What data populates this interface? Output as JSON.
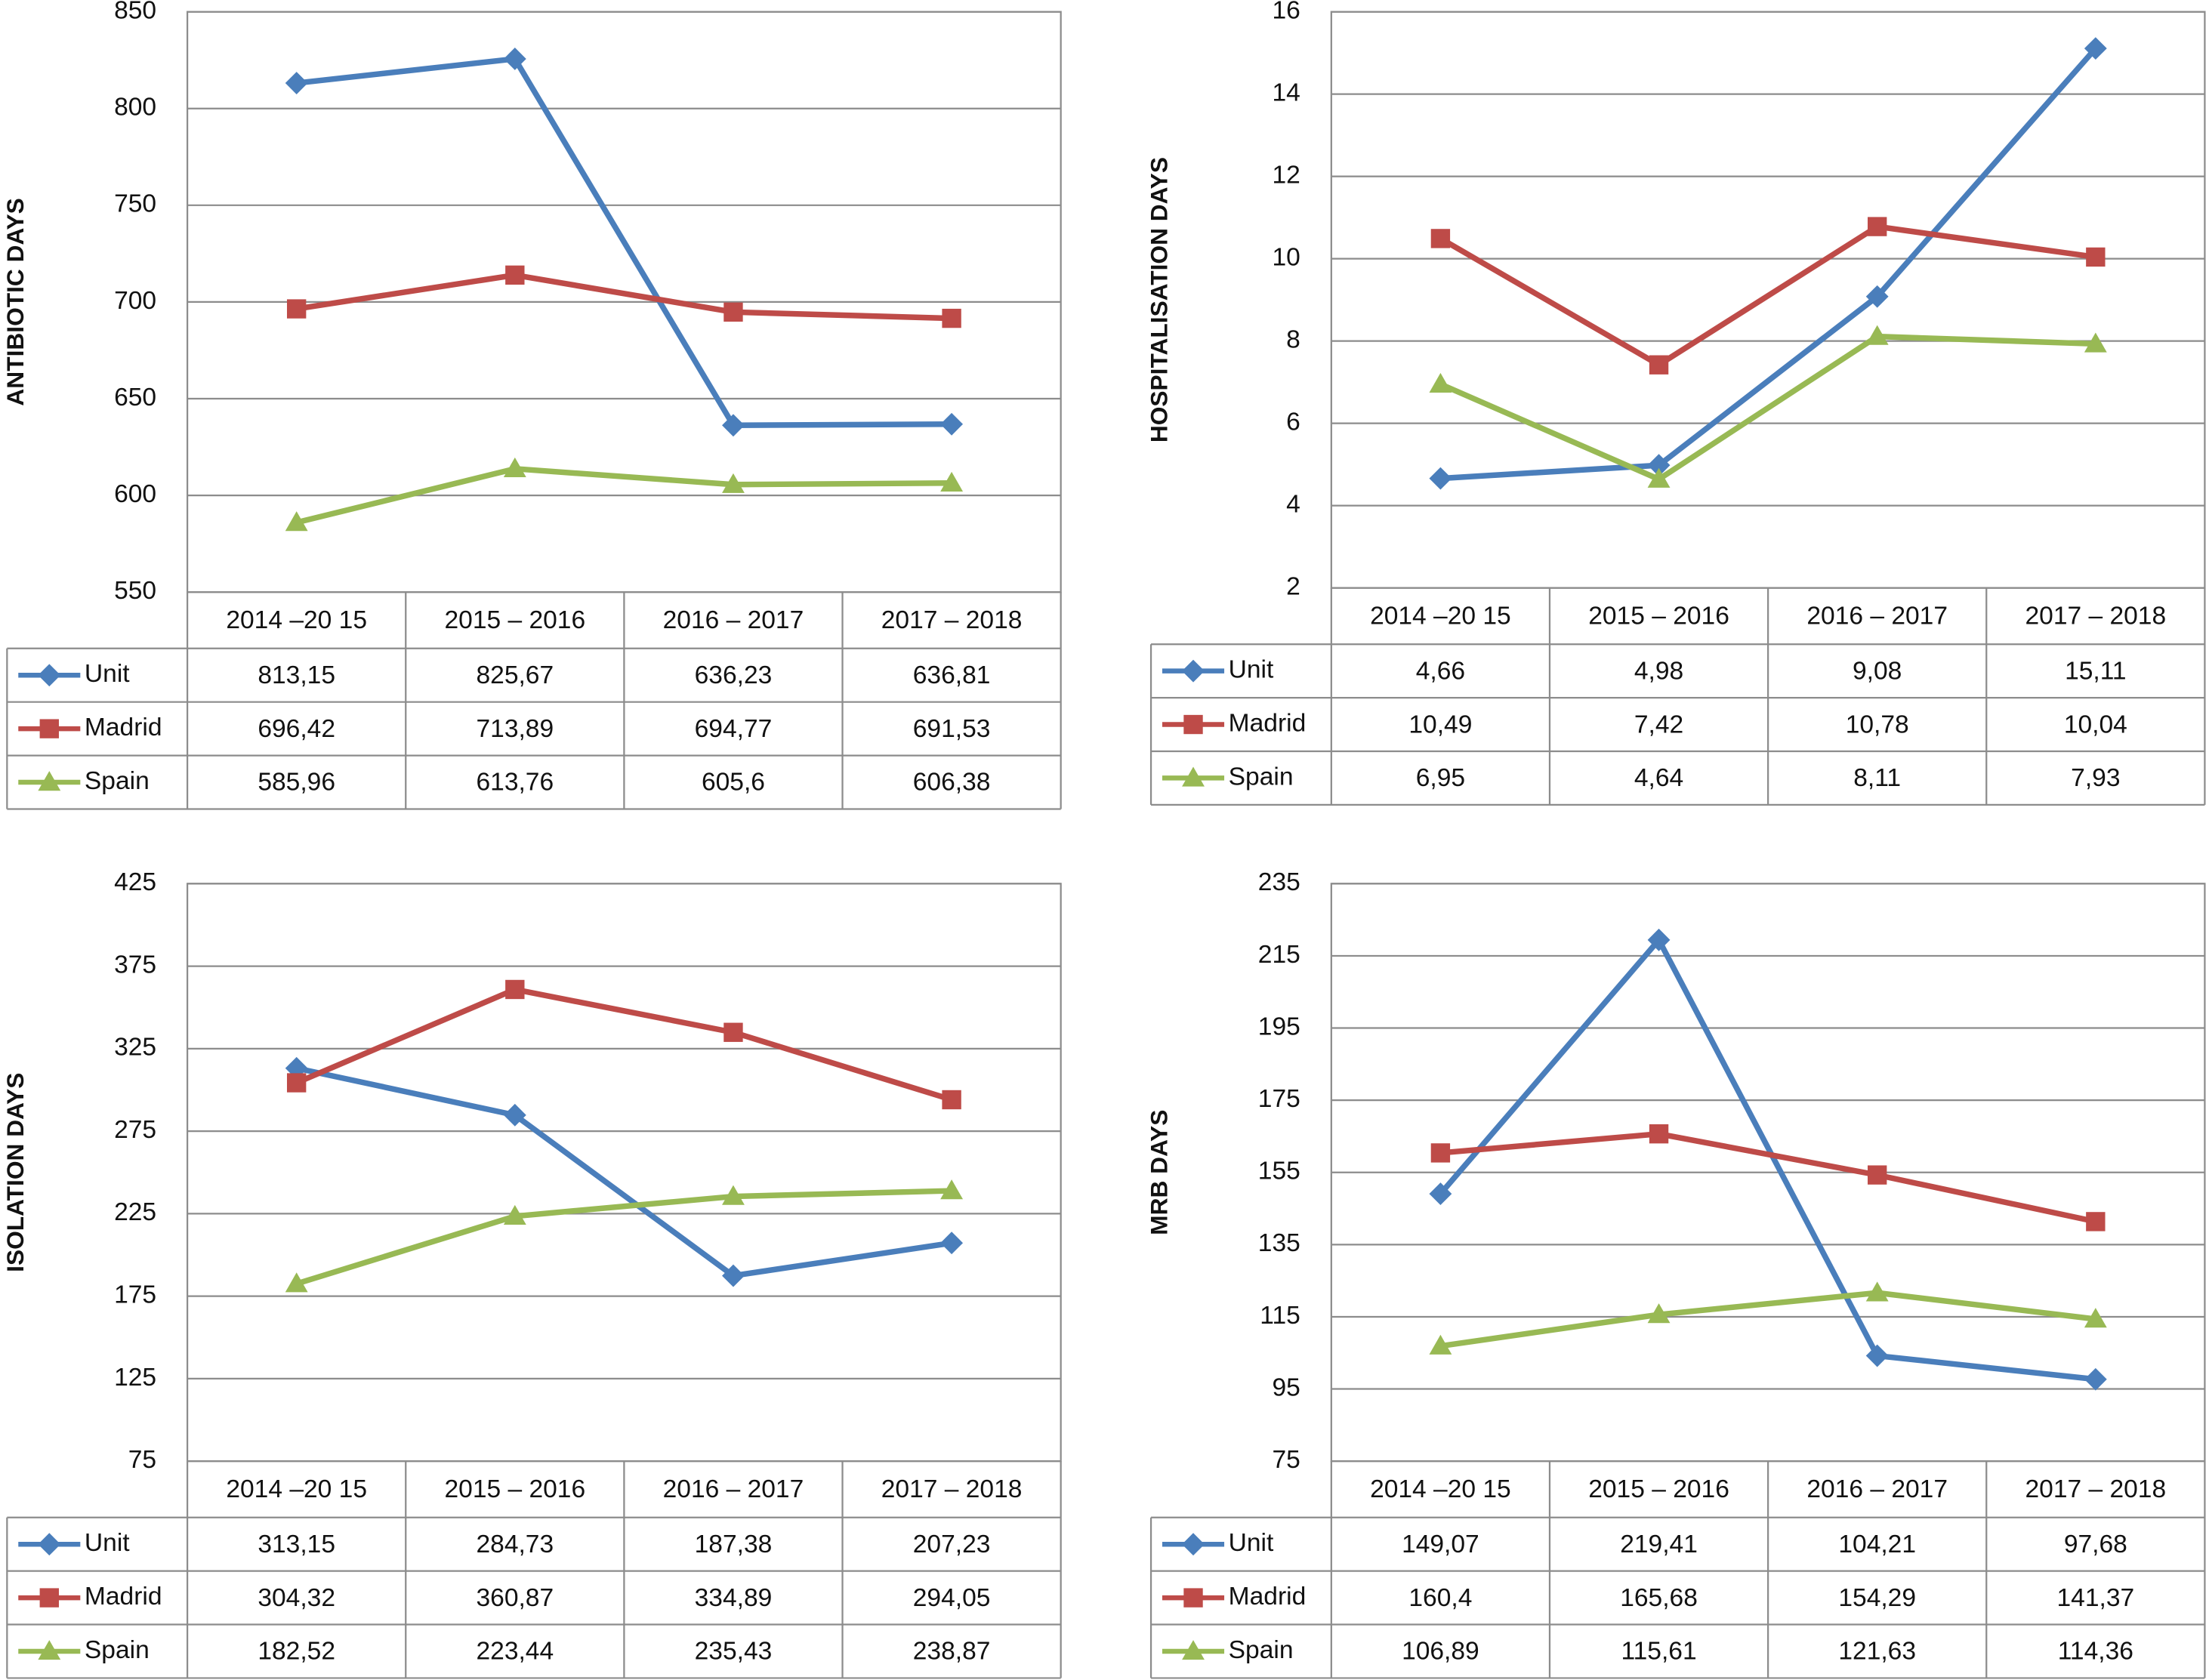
{
  "chart_data": [
    {
      "type": "line",
      "y_label": "ANTIBIOTIC DAYS",
      "categories": [
        "2014 –20 15",
        "2015 – 2016",
        "2016 – 2017",
        "2017 – 2018"
      ],
      "ylim": [
        550,
        850
      ],
      "yticks": [
        550,
        600,
        650,
        700,
        750,
        800,
        850
      ],
      "grid": true,
      "series": [
        {
          "name": "Unit",
          "color": "#4a7ebb",
          "marker": "diamond",
          "values": [
            813.15,
            825.67,
            636.23,
            636.81
          ],
          "value_labels": [
            "813,15",
            "825,67",
            "636,23",
            "636,81"
          ]
        },
        {
          "name": "Madrid",
          "color": "#be4b48",
          "marker": "square",
          "values": [
            696.42,
            713.89,
            694.77,
            691.53
          ],
          "value_labels": [
            "696,42",
            "713,89",
            "694,77",
            "691,53"
          ]
        },
        {
          "name": "Spain",
          "color": "#98b954",
          "marker": "triangle",
          "values": [
            585.96,
            613.76,
            605.6,
            606.38
          ],
          "value_labels": [
            "585,96",
            "613,76",
            "605,6",
            "606,38"
          ]
        }
      ]
    },
    {
      "type": "line",
      "y_label": "HOSPITALISATION DAYS",
      "categories": [
        "2014 –20 15",
        "2015 – 2016",
        "2016 – 2017",
        "2017 – 2018"
      ],
      "ylim": [
        2,
        16
      ],
      "yticks": [
        2,
        4,
        6,
        8,
        10,
        12,
        14,
        16
      ],
      "grid": true,
      "series": [
        {
          "name": "Unit",
          "color": "#4a7ebb",
          "marker": "diamond",
          "values": [
            4.66,
            4.98,
            9.08,
            15.11
          ],
          "value_labels": [
            "4,66",
            "4,98",
            "9,08",
            "15,11"
          ]
        },
        {
          "name": "Madrid",
          "color": "#be4b48",
          "marker": "square",
          "values": [
            10.49,
            7.42,
            10.78,
            10.04
          ],
          "value_labels": [
            "10,49",
            "7,42",
            "10,78",
            "10,04"
          ]
        },
        {
          "name": "Spain",
          "color": "#98b954",
          "marker": "triangle",
          "values": [
            6.95,
            4.64,
            8.11,
            7.93
          ],
          "value_labels": [
            "6,95",
            "4,64",
            "8,11",
            "7,93"
          ]
        }
      ]
    },
    {
      "type": "line",
      "y_label": "ISOLATION DAYS",
      "categories": [
        "2014 –20 15",
        "2015 – 2016",
        "2016 – 2017",
        "2017 – 2018"
      ],
      "ylim": [
        75,
        425
      ],
      "yticks": [
        75,
        125,
        175,
        225,
        275,
        325,
        375,
        425
      ],
      "grid": true,
      "series": [
        {
          "name": "Unit",
          "color": "#4a7ebb",
          "marker": "diamond",
          "values": [
            313.15,
            284.73,
            187.38,
            207.23
          ],
          "value_labels": [
            "313,15",
            "284,73",
            "187,38",
            "207,23"
          ]
        },
        {
          "name": "Madrid",
          "color": "#be4b48",
          "marker": "square",
          "values": [
            304.32,
            360.87,
            334.89,
            294.05
          ],
          "value_labels": [
            "304,32",
            "360,87",
            "334,89",
            "294,05"
          ]
        },
        {
          "name": "Spain",
          "color": "#98b954",
          "marker": "triangle",
          "values": [
            182.52,
            223.44,
            235.43,
            238.87
          ],
          "value_labels": [
            "182,52",
            "223,44",
            "235,43",
            "238,87"
          ]
        }
      ]
    },
    {
      "type": "line",
      "y_label": "MRB DAYS",
      "categories": [
        "2014 –20 15",
        "2015 – 2016",
        "2016 – 2017",
        "2017 – 2018"
      ],
      "ylim": [
        75,
        235
      ],
      "yticks": [
        75,
        95,
        115,
        135,
        155,
        175,
        195,
        215,
        235
      ],
      "grid": true,
      "series": [
        {
          "name": "Unit",
          "color": "#4a7ebb",
          "marker": "diamond",
          "values": [
            149.07,
            219.41,
            104.21,
            97.68
          ],
          "value_labels": [
            "149,07",
            "219,41",
            "104,21",
            "97,68"
          ]
        },
        {
          "name": "Madrid",
          "color": "#be4b48",
          "marker": "square",
          "values": [
            160.4,
            165.68,
            154.29,
            141.37
          ],
          "value_labels": [
            "160,4",
            "165,68",
            "154,29",
            "141,37"
          ]
        },
        {
          "name": "Spain",
          "color": "#98b954",
          "marker": "triangle",
          "values": [
            106.89,
            115.61,
            121.63,
            114.36
          ],
          "value_labels": [
            "106,89",
            "115,61",
            "121,63",
            "114,36"
          ]
        }
      ]
    }
  ]
}
